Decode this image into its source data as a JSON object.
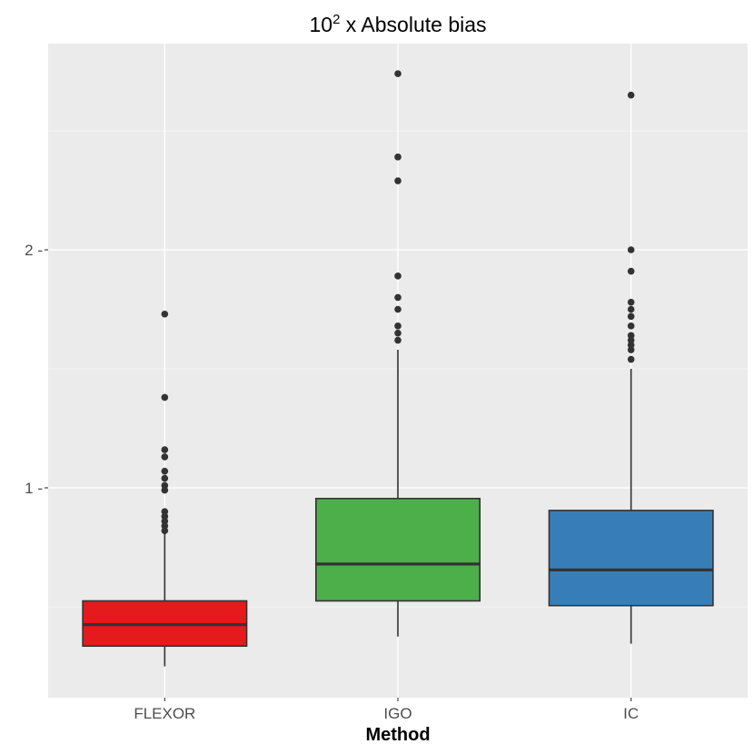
{
  "chart_data": {
    "type": "box",
    "title_base": "10",
    "title_exp": "2",
    "title_rest": " x Absolute bias",
    "xlabel": "Method",
    "ylabel": "",
    "categories": [
      "FLEXOR",
      "IGO",
      "IC"
    ],
    "y_ticks": [
      1,
      2
    ],
    "y_tick_labels": [
      "1 -",
      "2 -"
    ],
    "ylim": [
      0.15,
      2.85
    ],
    "grid": true,
    "legend": "none",
    "boxes": [
      {
        "category": "FLEXOR",
        "color": "#E41A1C",
        "whisker_low": 0.25,
        "q1": 0.335,
        "median": 0.425,
        "q3": 0.525,
        "whisker_high": 0.81,
        "outliers": [
          1.73,
          1.38,
          1.16,
          1.13,
          1.07,
          1.04,
          1.01,
          0.99,
          0.9,
          0.88,
          0.86,
          0.84,
          0.82
        ]
      },
      {
        "category": "IGO",
        "color": "#4DAF4A",
        "whisker_low": 0.375,
        "q1": 0.525,
        "median": 0.68,
        "q3": 0.955,
        "whisker_high": 1.58,
        "outliers": [
          2.74,
          2.39,
          2.29,
          1.89,
          1.8,
          1.75,
          1.68,
          1.65,
          1.62
        ]
      },
      {
        "category": "IC",
        "color": "#377EB8",
        "whisker_low": 0.345,
        "q1": 0.505,
        "median": 0.655,
        "q3": 0.905,
        "whisker_high": 1.5,
        "outliers": [
          2.65,
          2.0,
          1.91,
          1.78,
          1.75,
          1.72,
          1.68,
          1.64,
          1.62,
          1.6,
          1.58,
          1.54
        ]
      }
    ]
  }
}
